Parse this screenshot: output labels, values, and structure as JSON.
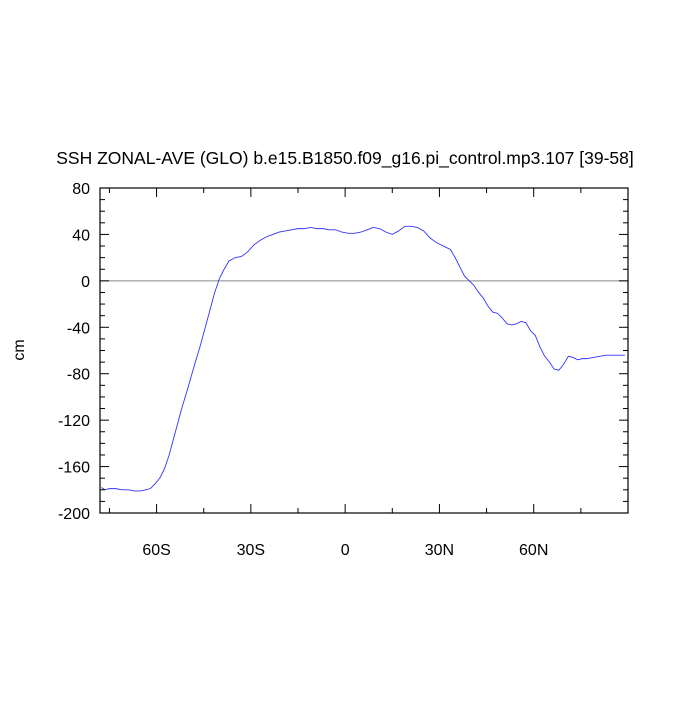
{
  "chart_data": {
    "type": "line",
    "title": "SSH ZONAL-AVE (GLO) b.e15.B1850.f09_g16.pi_control.mp3.107 [39-58]",
    "xlabel": "",
    "ylabel": "cm",
    "xlim": [
      -78,
      90
    ],
    "ylim": [
      -200,
      80
    ],
    "x_ticks": [
      {
        "value": -60,
        "label": "60S"
      },
      {
        "value": -30,
        "label": "30S"
      },
      {
        "value": 0,
        "label": "0"
      },
      {
        "value": 30,
        "label": "30N"
      },
      {
        "value": 60,
        "label": "60N"
      }
    ],
    "y_ticks": [
      {
        "value": 80,
        "label": "80"
      },
      {
        "value": 40,
        "label": "40"
      },
      {
        "value": 0,
        "label": "0"
      },
      {
        "value": -40,
        "label": "-40"
      },
      {
        "value": -80,
        "label": "-80"
      },
      {
        "value": -120,
        "label": "-120"
      },
      {
        "value": -160,
        "label": "-160"
      },
      {
        "value": -200,
        "label": "-200"
      }
    ],
    "reference_line": {
      "y": 0,
      "color": "#888888"
    },
    "grid": false,
    "series": [
      {
        "color": "#3333ff",
        "x": [
          -77.5,
          -76.5,
          -75,
          -73,
          -71,
          -69,
          -67,
          -65,
          -63.5,
          -62,
          -60.5,
          -59,
          -57.5,
          -56,
          -54,
          -52,
          -50,
          -48,
          -46,
          -44.5,
          -43,
          -41.5,
          -40,
          -38.5,
          -37,
          -35,
          -33,
          -31,
          -29,
          -27,
          -25,
          -23,
          -21,
          -19,
          -17,
          -15,
          -13,
          -11,
          -9,
          -7,
          -5,
          -3,
          -1,
          1,
          3,
          5,
          7,
          9,
          11,
          13,
          15,
          17,
          19,
          21,
          23,
          25,
          27,
          29,
          30.5,
          32,
          33.5,
          35,
          36.5,
          38,
          39.5,
          41,
          42.5,
          44,
          45.5,
          47,
          48.5,
          50,
          51.5,
          53,
          54.5,
          56,
          57.5,
          59,
          60.5,
          62,
          63.5,
          65,
          66.5,
          68,
          69.5,
          71,
          72.5,
          74,
          75.5,
          77,
          79,
          81,
          83,
          85,
          87,
          89
        ],
        "y": [
          -178,
          -180,
          -179,
          -179,
          -180,
          -180,
          -181,
          -181,
          -180,
          -179,
          -175,
          -170,
          -162,
          -150,
          -130,
          -110,
          -92,
          -73,
          -55,
          -40,
          -25,
          -10,
          2,
          10,
          17,
          20,
          21,
          25,
          31,
          35,
          38,
          40,
          42,
          43,
          44,
          45,
          45,
          46,
          45,
          45,
          44,
          44,
          42,
          41,
          41,
          42,
          44,
          46,
          45,
          42,
          40,
          43,
          47,
          47,
          46,
          43,
          37,
          33,
          31,
          29,
          27,
          20,
          12,
          4,
          0,
          -4,
          -10,
          -15,
          -22,
          -27,
          -28,
          -32,
          -37,
          -38,
          -37,
          -35,
          -36,
          -43,
          -47,
          -57,
          -65,
          -70,
          -76,
          -77,
          -72,
          -65,
          -66,
          -68,
          -67,
          -67,
          -66,
          -65,
          -64,
          -64,
          -64,
          -64
        ]
      }
    ]
  }
}
